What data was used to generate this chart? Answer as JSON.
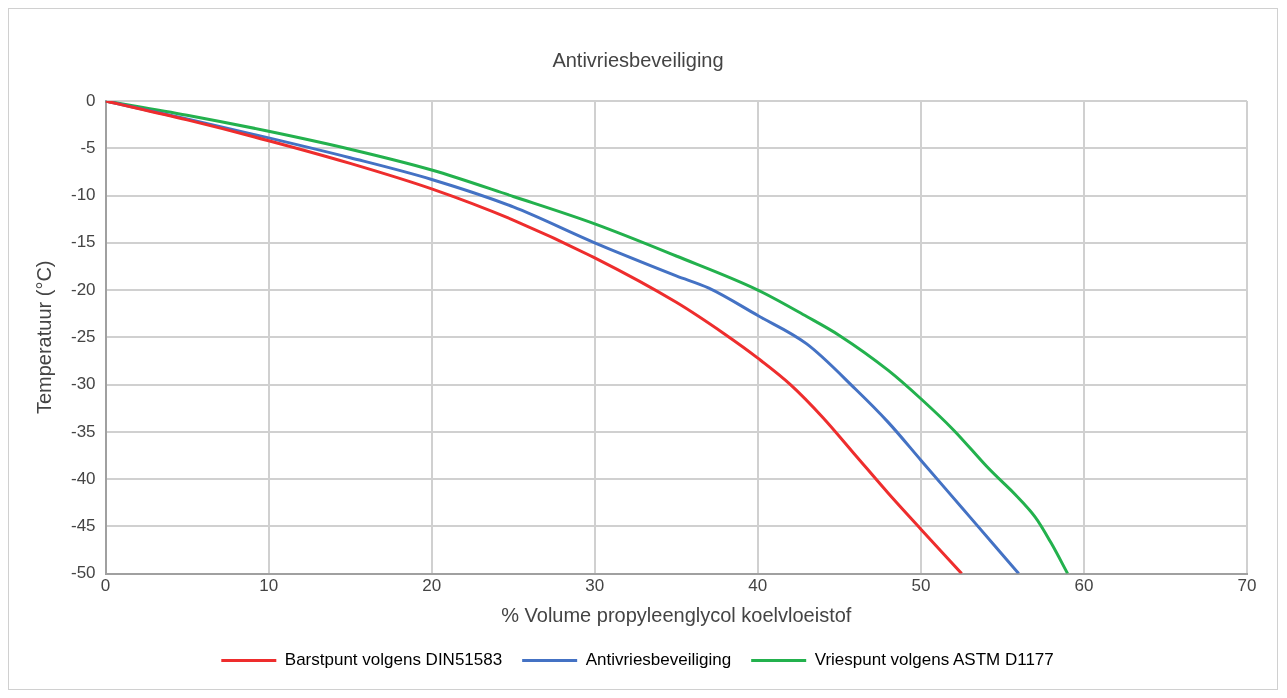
{
  "chart_data": {
    "type": "line",
    "title": "Antivriesbeveiliging",
    "xlabel": "% Volume propyleenglycol koelvloeistof",
    "ylabel": "Temperatuur (°C)",
    "series": [
      {
        "name": "Barstpunt volgens DIN51583",
        "color": "#ee2d2d",
        "x": [
          0,
          5,
          10,
          15,
          20,
          25,
          30,
          35,
          38,
          40,
          42,
          44,
          46,
          48,
          50,
          52.5
        ],
        "values": [
          0,
          -2,
          -4.2,
          -6.6,
          -9.3,
          -12.6,
          -16.6,
          -21.3,
          -24.7,
          -27.2,
          -30,
          -33.5,
          -37.5,
          -41.5,
          -45.3,
          -50
        ]
      },
      {
        "name": "Antivriesbeveiliging",
        "color": "#4472c4",
        "x": [
          0,
          5,
          10,
          15,
          20,
          25,
          30,
          35,
          37,
          40,
          43,
          46,
          48,
          50,
          53,
          56
        ],
        "values": [
          0,
          -1.9,
          -3.9,
          -6,
          -8.3,
          -11.2,
          -15,
          -18.5,
          -19.8,
          -22.7,
          -25.7,
          -30.5,
          -34,
          -38,
          -44,
          -50
        ]
      },
      {
        "name": "Vriespunt volgens ASTM D1177",
        "color": "#23b14d",
        "x": [
          0,
          5,
          10,
          15,
          20,
          25,
          30,
          35,
          40,
          43,
          45,
          48,
          50,
          52,
          54,
          57,
          58,
          59
        ],
        "values": [
          0,
          -1.5,
          -3.2,
          -5.1,
          -7.3,
          -10.1,
          -13,
          -16.4,
          -20,
          -22.8,
          -24.8,
          -28.5,
          -31.5,
          -34.8,
          -38.6,
          -44,
          -46.8,
          -50
        ]
      }
    ],
    "xlim": [
      0,
      70
    ],
    "xticks": [
      0,
      10,
      20,
      30,
      40,
      50,
      60,
      70
    ],
    "ylim": [
      -50,
      0
    ],
    "yticks": [
      0,
      -5,
      -10,
      -15,
      -20,
      -25,
      -30,
      -35,
      -40,
      -45,
      -50
    ],
    "grid": true,
    "legend": "bottom",
    "marker": "none",
    "line_style": "solid"
  }
}
